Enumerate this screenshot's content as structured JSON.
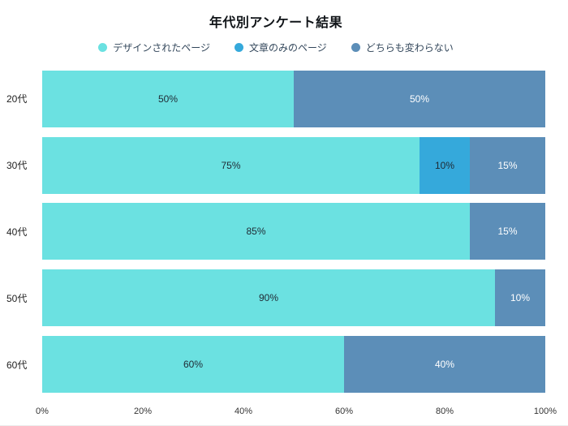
{
  "chart_data": {
    "type": "bar",
    "orientation": "horizontal",
    "stacked": true,
    "title": "年代別アンケート結果",
    "categories": [
      "20代",
      "30代",
      "40代",
      "50代",
      "60代"
    ],
    "series": [
      {
        "name": "デザインされたページ",
        "color": "#6BE1E1",
        "label_color": "#1f2933",
        "values": [
          50,
          75,
          85,
          90,
          60
        ]
      },
      {
        "name": "文章のみのページ",
        "color": "#35A9DB",
        "label_color": "#1f2933",
        "values": [
          0,
          10,
          0,
          0,
          0
        ]
      },
      {
        "name": "どちらも変わらない",
        "color": "#5C8EB8",
        "label_color": "#ffffff",
        "values": [
          50,
          15,
          15,
          10,
          40
        ]
      }
    ],
    "value_label_suffix": "%",
    "x_ticks": [
      "0%",
      "20%",
      "40%",
      "60%",
      "80%",
      "100%"
    ],
    "xlim": [
      0,
      100
    ],
    "legend_position": "top",
    "grid": false
  }
}
